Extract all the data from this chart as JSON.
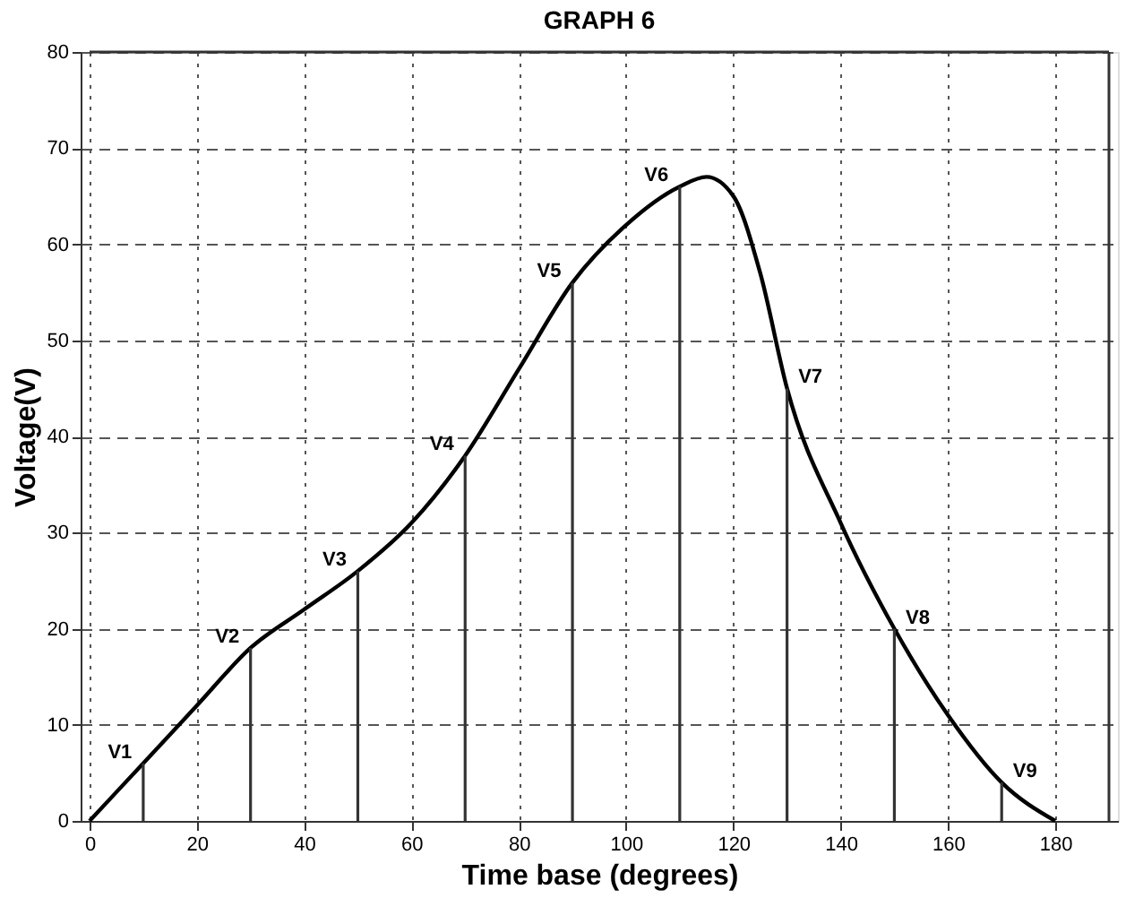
{
  "chart_data": {
    "type": "line",
    "title": "GRAPH 6",
    "xlabel": "Time base (degrees)",
    "ylabel": "Voltage(V)",
    "xlim": [
      0,
      190
    ],
    "ylim": [
      0,
      80
    ],
    "xticks": [
      0,
      20,
      40,
      60,
      80,
      100,
      120,
      140,
      160,
      180
    ],
    "yticks": [
      0,
      10,
      20,
      30,
      40,
      50,
      60,
      70,
      80
    ],
    "grid": true,
    "marker": "none",
    "line_style": "solid",
    "series": [
      {
        "color": "#000000",
        "x": [
          0,
          10,
          20,
          30,
          40,
          50,
          60,
          70,
          80,
          90,
          100,
          110,
          115,
          120,
          125,
          130,
          140,
          150,
          160,
          170,
          180
        ],
        "values": [
          0,
          6,
          12,
          18,
          22,
          26,
          31,
          38,
          47,
          56,
          62,
          66,
          67,
          65,
          57,
          45,
          31,
          20,
          11,
          4,
          0
        ]
      },
      {
        "type": "bar",
        "color": "#333333",
        "x": [
          10,
          30,
          50,
          70,
          90,
          110,
          130,
          150,
          170
        ],
        "values": [
          6,
          18,
          26,
          38,
          56,
          66,
          45,
          20,
          4
        ]
      }
    ],
    "annotations": [
      {
        "text": "V1",
        "x": 10,
        "y": 6
      },
      {
        "text": "V2",
        "x": 30,
        "y": 18
      },
      {
        "text": "V3",
        "x": 50,
        "y": 26
      },
      {
        "text": "V4",
        "x": 70,
        "y": 38
      },
      {
        "text": "V5",
        "x": 90,
        "y": 56
      },
      {
        "text": "V6",
        "x": 110,
        "y": 66
      },
      {
        "text": "V7",
        "x": 130,
        "y": 45
      },
      {
        "text": "V8",
        "x": 150,
        "y": 20
      },
      {
        "text": "V9",
        "x": 170,
        "y": 4
      }
    ]
  }
}
